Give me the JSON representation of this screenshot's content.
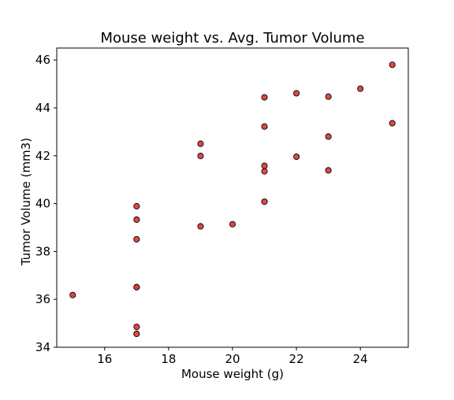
{
  "chart_data": {
    "type": "scatter",
    "title": "Mouse weight vs. Avg. Tumor Volume",
    "xlabel": "Mouse weight (g)",
    "ylabel": "Tumor Volume (mm3)",
    "xlim": [
      14.5,
      25.5
    ],
    "ylim": [
      34.0,
      46.5
    ],
    "xticks": [
      16,
      18,
      20,
      22,
      24
    ],
    "yticks": [
      34,
      36,
      38,
      40,
      42,
      44,
      46
    ],
    "grid": false,
    "marker_color": "#e03c3c",
    "marker_edge_color": "#000000",
    "points": [
      {
        "x": 15,
        "y": 36.18
      },
      {
        "x": 17,
        "y": 39.89
      },
      {
        "x": 17,
        "y": 39.33
      },
      {
        "x": 17,
        "y": 38.51
      },
      {
        "x": 17,
        "y": 36.51
      },
      {
        "x": 17,
        "y": 36.51
      },
      {
        "x": 17,
        "y": 34.85
      },
      {
        "x": 17,
        "y": 34.56
      },
      {
        "x": 19,
        "y": 42.5
      },
      {
        "x": 19,
        "y": 41.99
      },
      {
        "x": 19,
        "y": 39.05
      },
      {
        "x": 20,
        "y": 39.14
      },
      {
        "x": 21,
        "y": 44.44
      },
      {
        "x": 21,
        "y": 43.22
      },
      {
        "x": 21,
        "y": 41.58
      },
      {
        "x": 21,
        "y": 41.35
      },
      {
        "x": 21,
        "y": 40.08
      },
      {
        "x": 22,
        "y": 44.61
      },
      {
        "x": 22,
        "y": 41.96
      },
      {
        "x": 23,
        "y": 44.47
      },
      {
        "x": 23,
        "y": 42.8
      },
      {
        "x": 23,
        "y": 41.39
      },
      {
        "x": 24,
        "y": 44.8
      },
      {
        "x": 25,
        "y": 45.8
      },
      {
        "x": 25,
        "y": 43.36
      }
    ]
  }
}
